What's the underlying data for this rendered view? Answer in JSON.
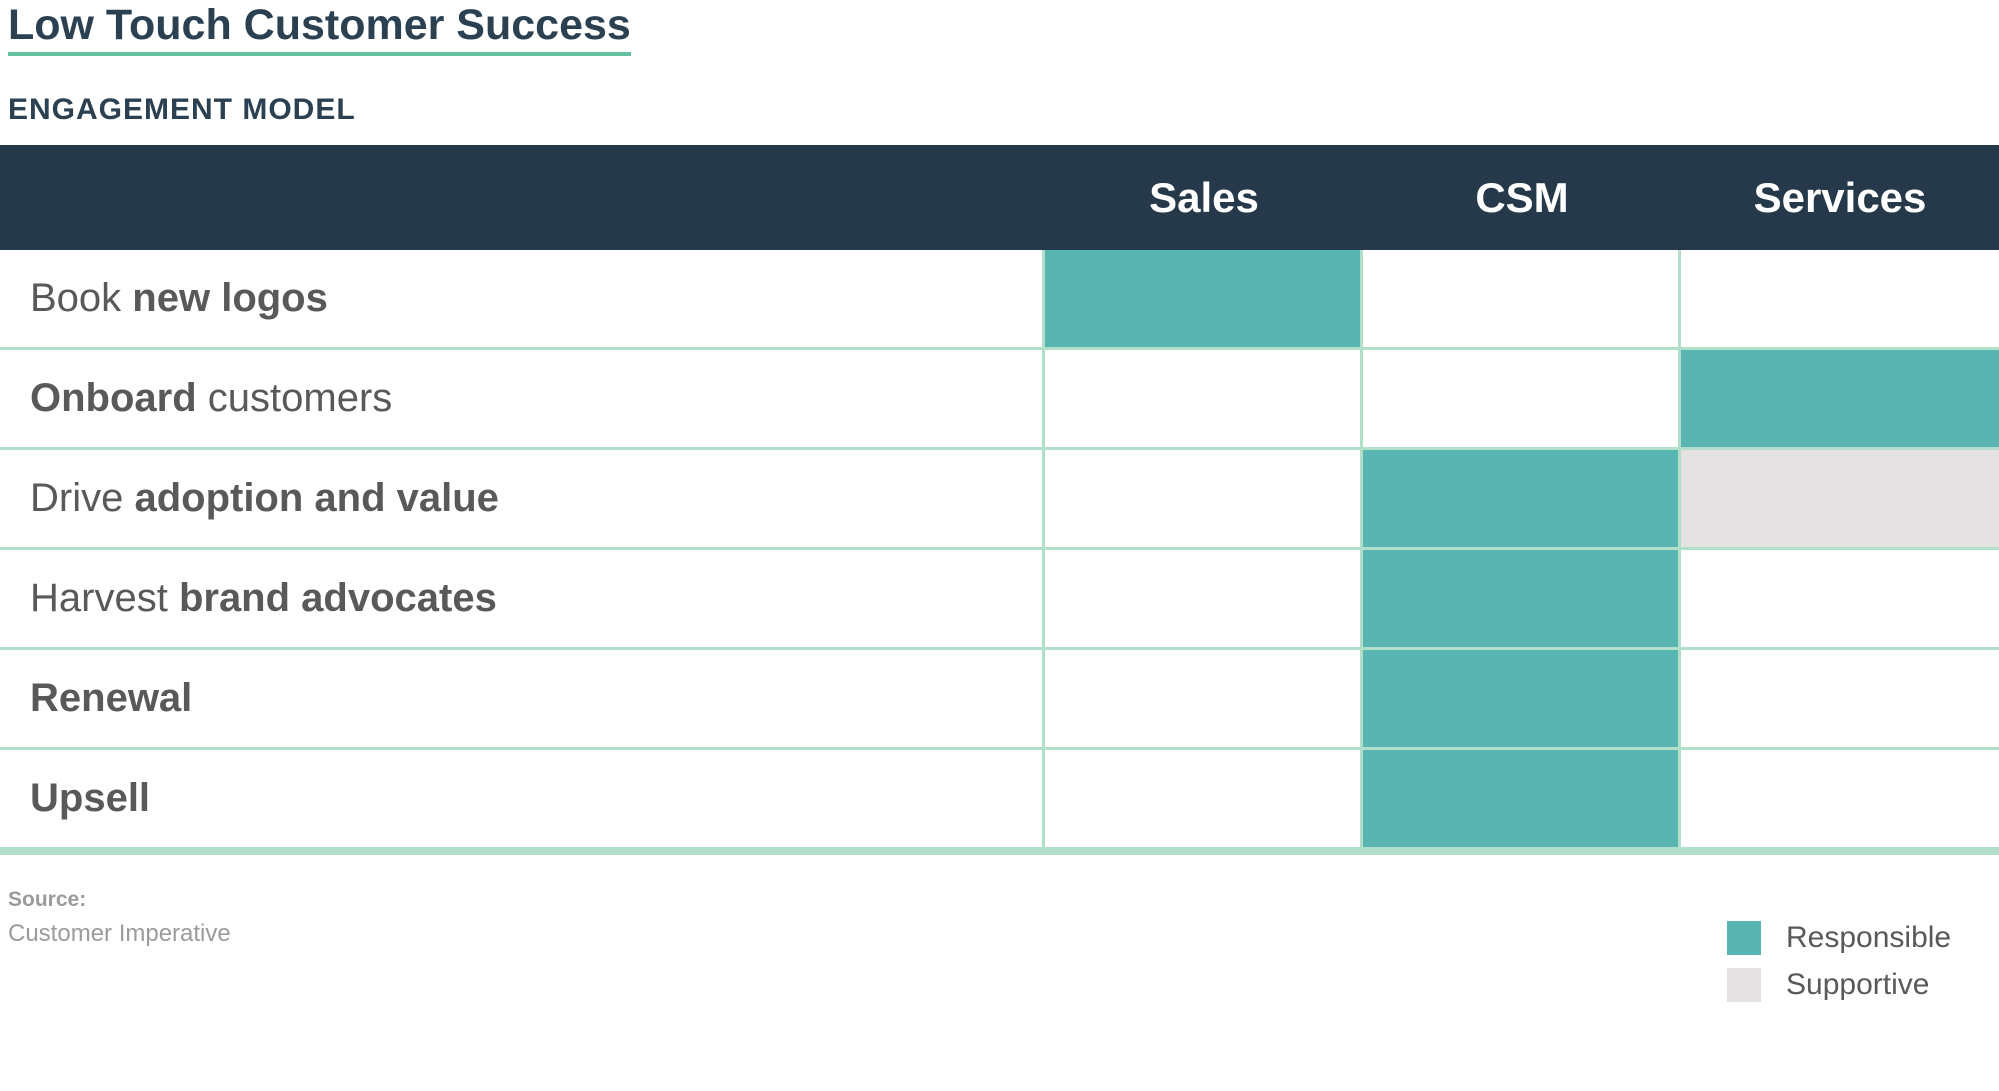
{
  "colors": {
    "background": "#FFFFFF",
    "header_bg": "#25394A",
    "header_text": "#FFFFFF",
    "responsible": "#58B5B1",
    "supportive": "#E4E2E2",
    "grid_line": "#B2DFC9",
    "title_text": "#2B4152",
    "title_underline": "#64C29E",
    "row_text": "#58595B",
    "muted_text": "#9B9B9B"
  },
  "header": {
    "title": "Low Touch Customer Success",
    "subtitle": "ENGAGEMENT MODEL"
  },
  "matrix": {
    "columns": [
      "Sales",
      "CSM",
      "Services"
    ],
    "rows": [
      {
        "parts": [
          {
            "text": "Book ",
            "bold": false
          },
          {
            "text": "new logos",
            "bold": true
          }
        ],
        "cells": [
          "responsible",
          "none",
          "none"
        ]
      },
      {
        "parts": [
          {
            "text": "Onboard",
            "bold": true
          },
          {
            "text": " customers",
            "bold": false
          }
        ],
        "cells": [
          "none",
          "none",
          "responsible"
        ]
      },
      {
        "parts": [
          {
            "text": "Drive ",
            "bold": false
          },
          {
            "text": "adoption and value",
            "bold": true
          }
        ],
        "cells": [
          "none",
          "responsible",
          "supportive"
        ]
      },
      {
        "parts": [
          {
            "text": "Harvest ",
            "bold": false
          },
          {
            "text": "brand advocates",
            "bold": true
          }
        ],
        "cells": [
          "none",
          "responsible",
          "none"
        ]
      },
      {
        "parts": [
          {
            "text": "Renewal",
            "bold": true
          }
        ],
        "cells": [
          "none",
          "responsible",
          "none"
        ]
      },
      {
        "parts": [
          {
            "text": "Upsell",
            "bold": true
          }
        ],
        "cells": [
          "none",
          "responsible",
          "none"
        ]
      }
    ]
  },
  "source": {
    "label": "Source:",
    "value": "Customer Imperative"
  },
  "legend": {
    "items": [
      {
        "key": "responsible",
        "label": "Responsible"
      },
      {
        "key": "supportive",
        "label": "Supportive"
      }
    ]
  }
}
